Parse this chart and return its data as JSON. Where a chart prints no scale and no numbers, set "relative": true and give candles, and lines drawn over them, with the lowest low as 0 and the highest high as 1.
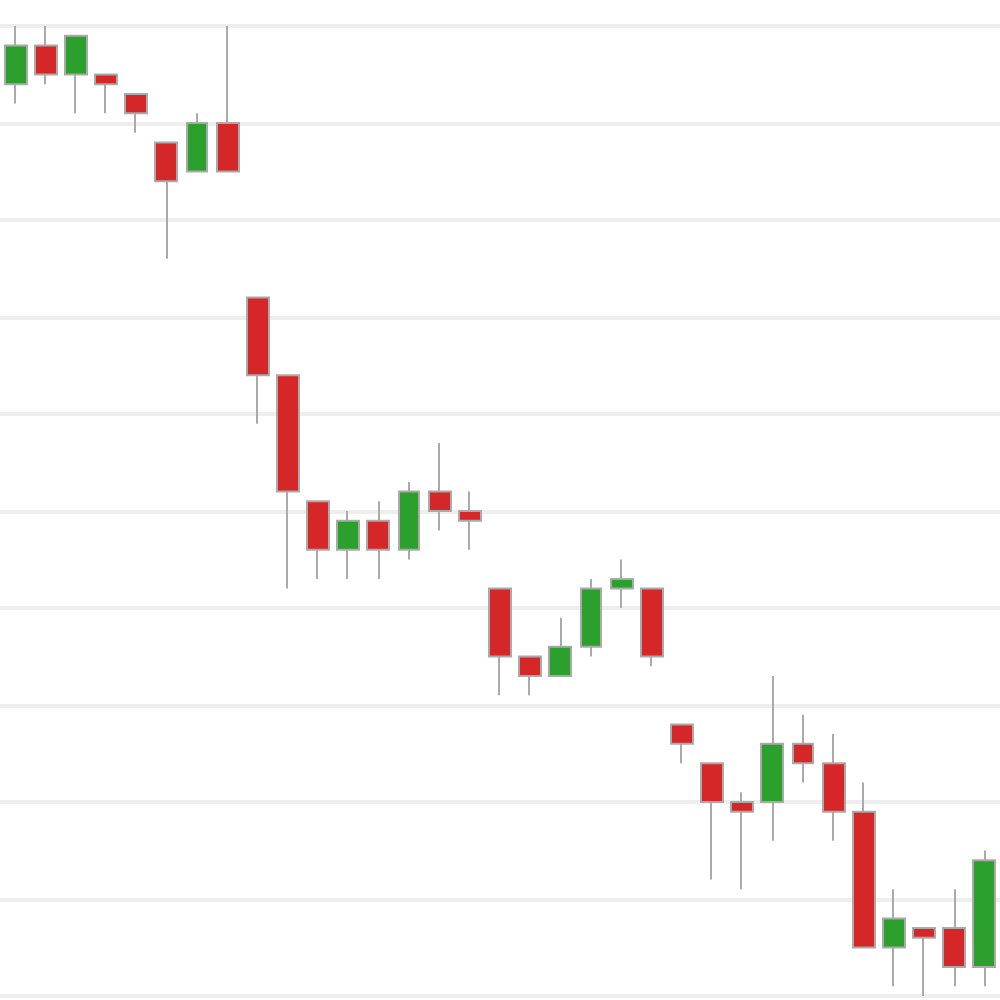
{
  "chart_data": {
    "type": "candlestick",
    "relative": true,
    "grid": "y",
    "categories": [
      null,
      null,
      null,
      null,
      null,
      null,
      null,
      null,
      null,
      null,
      null,
      null,
      null,
      null,
      null,
      null,
      null,
      null,
      null,
      null,
      null,
      null,
      null,
      null,
      null,
      null,
      null,
      null,
      null,
      null,
      null,
      null,
      null
    ],
    "ohlc": [
      [
        0.94,
        1.0,
        0.92,
        0.98
      ],
      [
        0.98,
        1.0,
        0.94,
        0.95
      ],
      [
        0.95,
        0.99,
        0.91,
        0.99
      ],
      [
        0.95,
        0.95,
        0.91,
        0.94
      ],
      [
        0.93,
        0.93,
        0.89,
        0.91
      ],
      [
        0.88,
        0.88,
        0.76,
        0.84
      ],
      [
        0.85,
        0.91,
        0.85,
        0.9
      ],
      [
        0.9,
        1.0,
        0.85,
        0.85
      ],
      [
        0.72,
        0.72,
        0.59,
        0.64
      ],
      [
        0.64,
        0.64,
        0.42,
        0.52
      ],
      [
        0.51,
        0.51,
        0.43,
        0.46
      ],
      [
        0.46,
        0.5,
        0.43,
        0.49
      ],
      [
        0.49,
        0.51,
        0.43,
        0.46
      ],
      [
        0.46,
        0.53,
        0.45,
        0.52
      ],
      [
        0.52,
        0.57,
        0.48,
        0.5
      ],
      [
        0.5,
        0.52,
        0.46,
        0.49
      ],
      [
        0.42,
        0.42,
        0.31,
        0.35
      ],
      [
        0.35,
        0.35,
        0.31,
        0.33
      ],
      [
        0.33,
        0.39,
        0.33,
        0.36
      ],
      [
        0.36,
        0.43,
        0.35,
        0.42
      ],
      [
        0.42,
        0.45,
        0.4,
        0.43
      ],
      [
        0.42,
        0.42,
        0.34,
        0.35
      ],
      [
        0.28,
        0.28,
        0.24,
        0.26
      ],
      [
        0.24,
        0.24,
        0.12,
        0.2
      ],
      [
        0.2,
        0.21,
        0.11,
        0.19
      ],
      [
        0.2,
        0.33,
        0.16,
        0.26
      ],
      [
        0.26,
        0.29,
        0.22,
        0.24
      ],
      [
        0.24,
        0.27,
        0.16,
        0.19
      ],
      [
        0.19,
        0.22,
        0.05,
        0.05
      ],
      [
        0.05,
        0.11,
        0.01,
        0.08
      ],
      [
        0.07,
        0.07,
        0.0,
        0.06
      ],
      [
        0.07,
        0.11,
        0.01,
        0.03
      ],
      [
        0.03,
        0.15,
        0.01,
        0.14
      ]
    ],
    "colors": [
      "#2ca02c",
      "#d62728",
      "#2ca02c",
      "#d62728",
      "#d62728",
      "#d62728",
      "#2ca02c",
      "#d62728",
      "#d62728",
      "#d62728",
      "#d62728",
      "#2ca02c",
      "#d62728",
      "#2ca02c",
      "#d62728",
      "#d62728",
      "#d62728",
      "#d62728",
      "#2ca02c",
      "#2ca02c",
      "#2ca02c",
      "#d62728",
      "#d62728",
      "#d62728",
      "#d62728",
      "#2ca02c",
      "#d62728",
      "#d62728",
      "#d62728",
      "#2ca02c",
      "#d62728",
      "#d62728",
      "#2ca02c"
    ]
  }
}
